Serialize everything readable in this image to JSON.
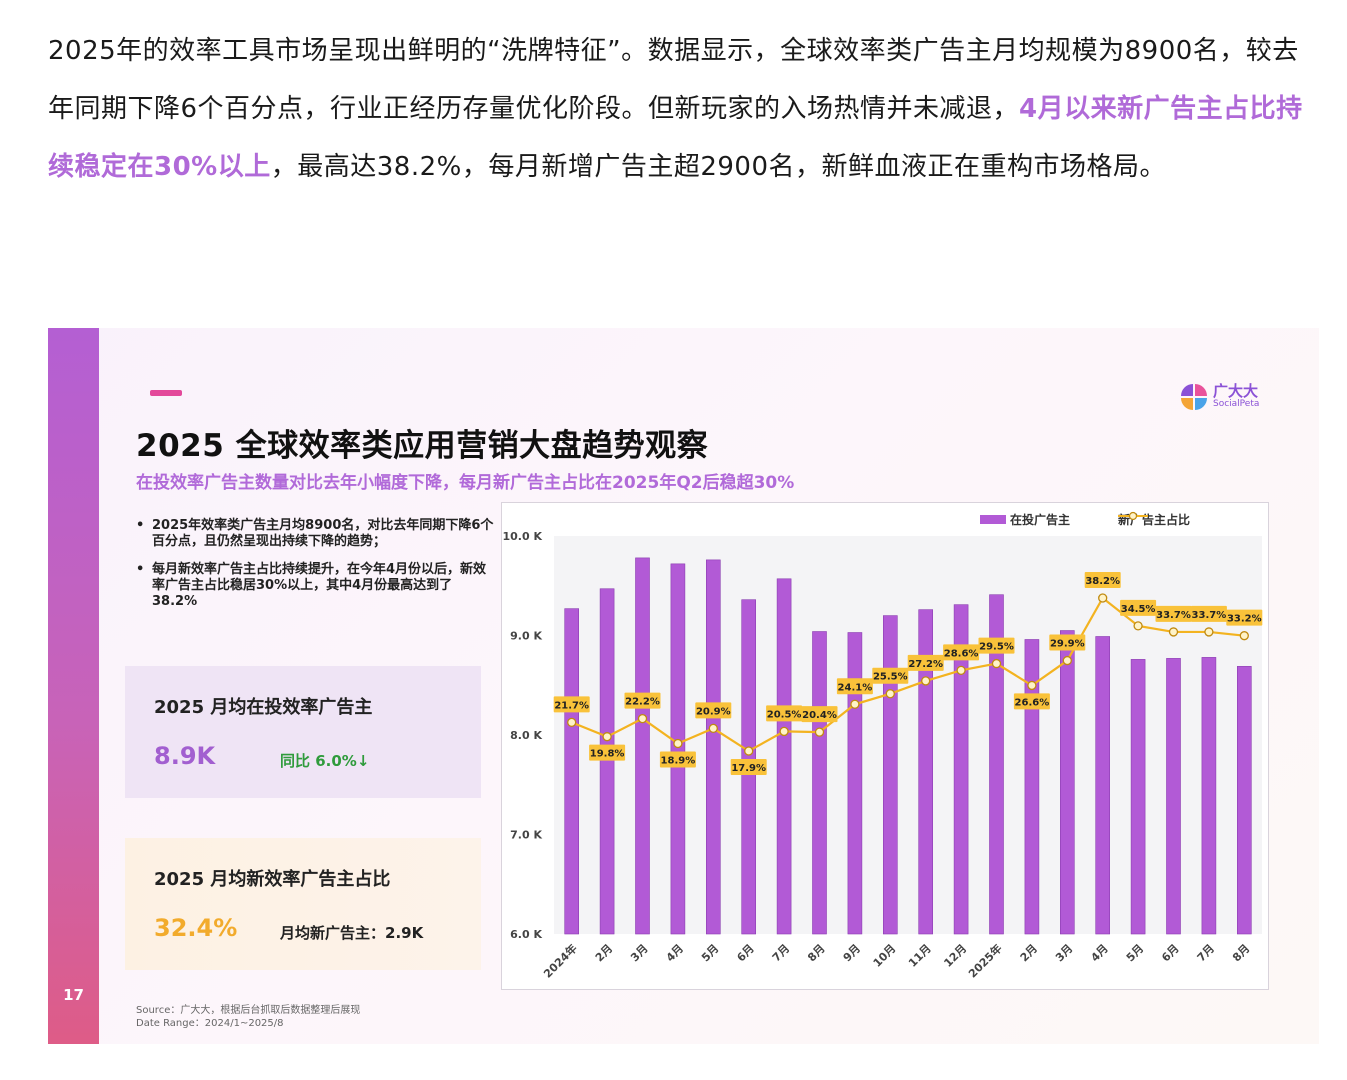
{
  "intro": {
    "part1": "2025年的效率工具市场呈现出鲜明的“洗牌特征”。数据显示，全球效率类广告主月均规模为8900名，较去年同期下降6个百分点，行业正经历存量优化阶段。但新玩家的入场热情并未减退，",
    "highlight": "4月以来新广告主占比持续稳定在30%以上",
    "part2": "，最高达38.2%，每月新增广告主超2900名，新鲜血液正在重构市场格局。"
  },
  "slide": {
    "page_number": "17",
    "logo_cn": "广大大",
    "logo_en": "SocialPeta",
    "title": "2025 全球效率类应用营销大盘趋势观察",
    "subtitle": "在投效率广告主数量对比去年小幅度下降，每月新广告主占比在2025年Q2后稳超30%",
    "bullets": [
      "2025年效率类广告主月均8900名，对比去年同期下降6个百分点，且仍然呈现出持续下降的趋势；",
      "每月新效率广告主占比持续提升，在今年4月份以后，新效率广告主占比稳居30%以上，其中4月份最高达到了38.2%"
    ],
    "card1": {
      "title": "2025 月均在投效率广告主",
      "value": "8.9K",
      "note": "同比 6.0%↓"
    },
    "card2": {
      "title": "2025 月均新效率广告主占比",
      "value": "32.4%",
      "note": "月均新广告主：2.9K"
    },
    "source": "Source：广大大，根据后台抓取后数据整理后展现",
    "date_range": "Date Range：2024/1~2025/8",
    "colors": {
      "bar": "#b25ad6",
      "line": "#f3b320",
      "label_bg": "#f9c23a",
      "accent": "#e3489a"
    }
  },
  "chart_data": {
    "type": "bar",
    "title": "",
    "categories": [
      "2024年",
      "2月",
      "3月",
      "4月",
      "5月",
      "6月",
      "7月",
      "8月",
      "9月",
      "10月",
      "11月",
      "12月",
      "2025年",
      "2月",
      "3月",
      "4月",
      "5月",
      "6月",
      "7月",
      "8月"
    ],
    "y_ticks": [
      "10.0 K",
      "9.0 K",
      "8.0 K",
      "7.0 K",
      "6.0 K"
    ],
    "ylim": [
      6.0,
      10.0
    ],
    "y_unit": "K",
    "legend_position": "top-right",
    "series": [
      {
        "name": "在投广告主",
        "type": "bar",
        "values": [
          9.27,
          9.47,
          9.78,
          9.72,
          9.76,
          9.36,
          9.57,
          9.04,
          9.03,
          9.2,
          9.26,
          9.31,
          9.41,
          8.96,
          9.05,
          8.99,
          8.76,
          8.77,
          8.78,
          8.69
        ]
      },
      {
        "name": "新广告主占比",
        "type": "line",
        "values": [
          21.7,
          19.8,
          22.2,
          18.9,
          20.9,
          17.9,
          20.5,
          20.4,
          24.1,
          25.5,
          27.2,
          28.6,
          29.5,
          26.6,
          29.9,
          38.2,
          34.5,
          33.7,
          33.7,
          33.2
        ],
        "labels": [
          "21.7%",
          "19.8%",
          "22.2%",
          "18.9%",
          "20.9%",
          "17.9%",
          "20.5%",
          "20.4%",
          "24.1%",
          "25.5%",
          "27.2%",
          "28.6%",
          "29.5%",
          "26.6%",
          "29.9%",
          "38.2%",
          "34.5%",
          "33.7%",
          "33.7%",
          "33.2%"
        ]
      }
    ]
  }
}
